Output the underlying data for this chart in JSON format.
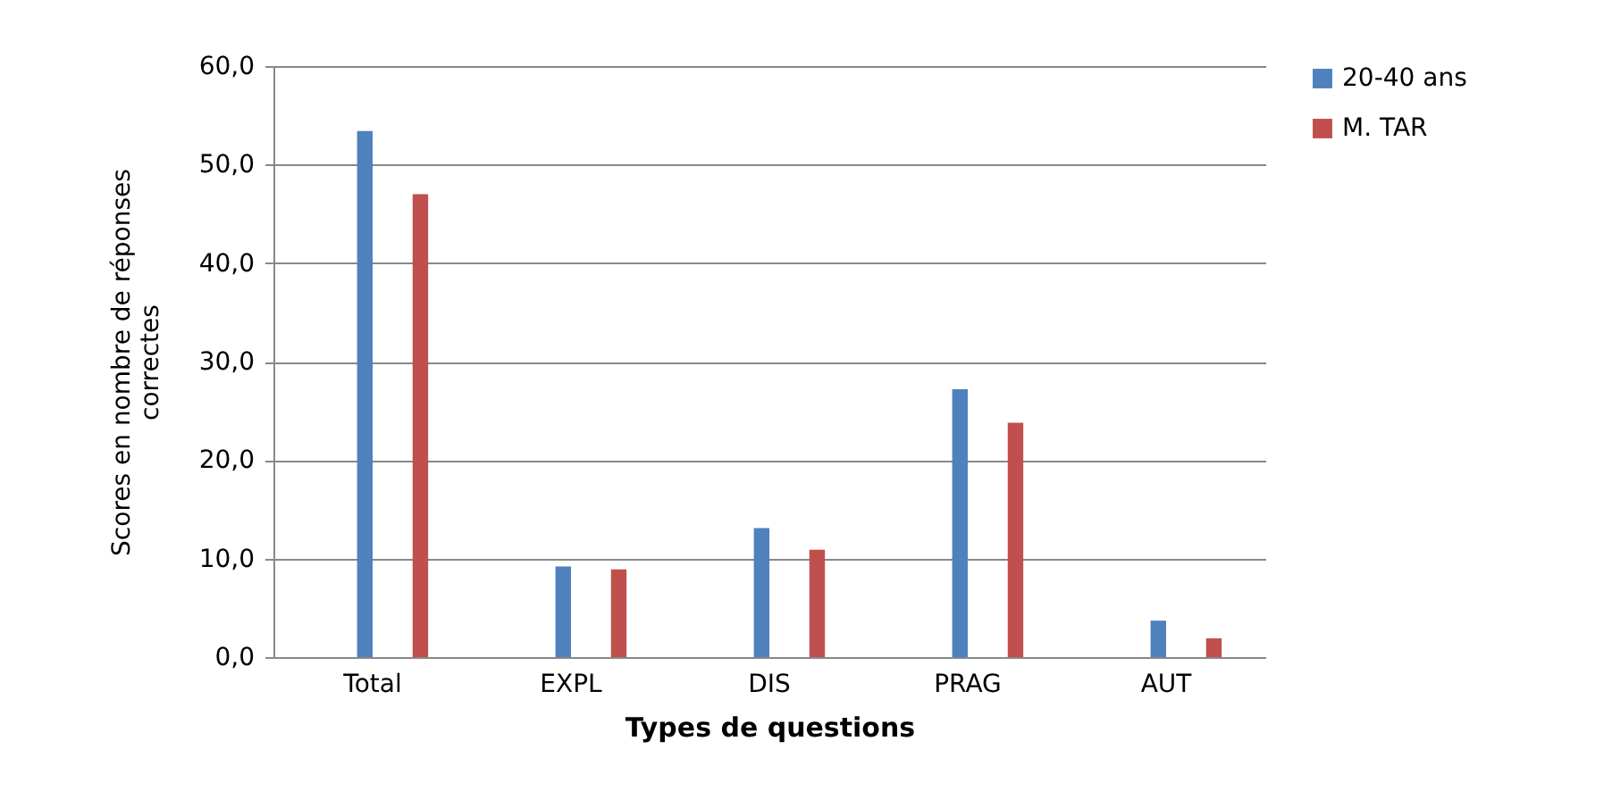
{
  "chart_data": {
    "type": "bar",
    "xlabel": "Types de questions",
    "ylabel": "Scores en nombre de réponses correctes",
    "categories": [
      "Total",
      "EXPL",
      "DIS",
      "PRAG",
      "AUT"
    ],
    "series": [
      {
        "name": "20-40 ans",
        "color": "#4f81bd",
        "values": [
          53.4,
          9.2,
          13.1,
          27.2,
          3.7
        ]
      },
      {
        "name": "M. TAR",
        "color": "#c0504d",
        "values": [
          47.0,
          8.9,
          10.9,
          23.8,
          1.9
        ]
      }
    ],
    "ylim": [
      0,
      60
    ],
    "yticks": [
      {
        "value": 0,
        "label": "0,0"
      },
      {
        "value": 10,
        "label": "10,0"
      },
      {
        "value": 20,
        "label": "20,0"
      },
      {
        "value": 30,
        "label": "30,0"
      },
      {
        "value": 40,
        "label": "40,0"
      },
      {
        "value": 50,
        "label": "50,0"
      },
      {
        "value": 60,
        "label": "60,0"
      }
    ],
    "grid": "y",
    "legend": "right"
  }
}
